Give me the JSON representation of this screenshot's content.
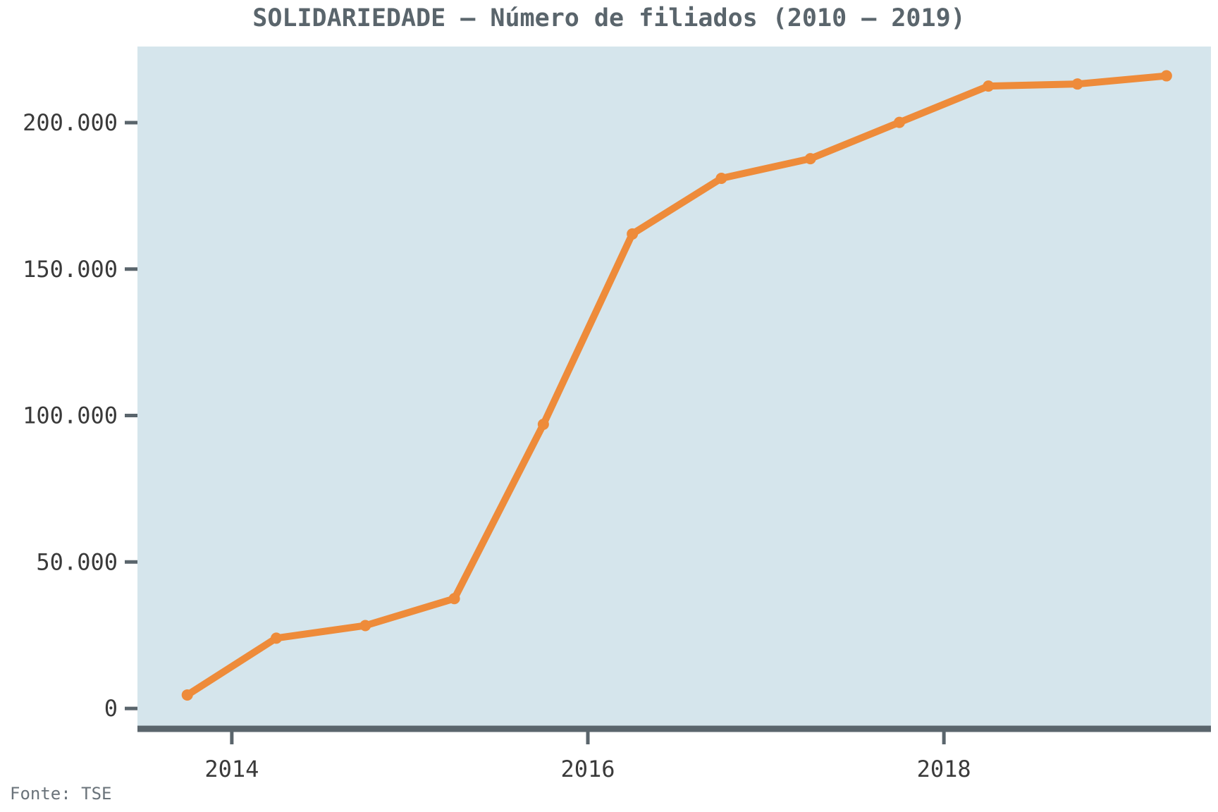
{
  "title": "SOLIDARIEDADE – Número de filiados (2010 – 2019)",
  "source": "Fonte: TSE",
  "colors": {
    "plot_bg": "#d5e5ec",
    "line": "#ee8b3a",
    "axis": "#5a656c"
  },
  "chart_data": {
    "type": "line",
    "title": "SOLIDARIEDADE – Número de filiados (2010 – 2019)",
    "xlabel": "",
    "ylabel": "",
    "x_unit": "year",
    "xlim": [
      2013.47,
      2019.5
    ],
    "ylim": [
      -6000,
      226000
    ],
    "x_ticks": [
      2014,
      2016,
      2018
    ],
    "x_tick_labels": [
      "2014",
      "2016",
      "2018"
    ],
    "y_ticks": [
      0,
      50000,
      100000,
      150000,
      200000
    ],
    "y_tick_labels": [
      "0",
      "50.000",
      "100.000",
      "150.000",
      "200.000"
    ],
    "grid": false,
    "series": [
      {
        "x": [
          2013.75,
          2014.25,
          2014.75,
          2015.25,
          2015.75,
          2016.25,
          2016.75,
          2017.25,
          2017.75,
          2018.25,
          2018.75,
          2019.25
        ],
        "values": [
          4600,
          24000,
          28300,
          37500,
          97000,
          162000,
          181000,
          187700,
          200100,
          212500,
          213200,
          216000
        ]
      }
    ]
  }
}
